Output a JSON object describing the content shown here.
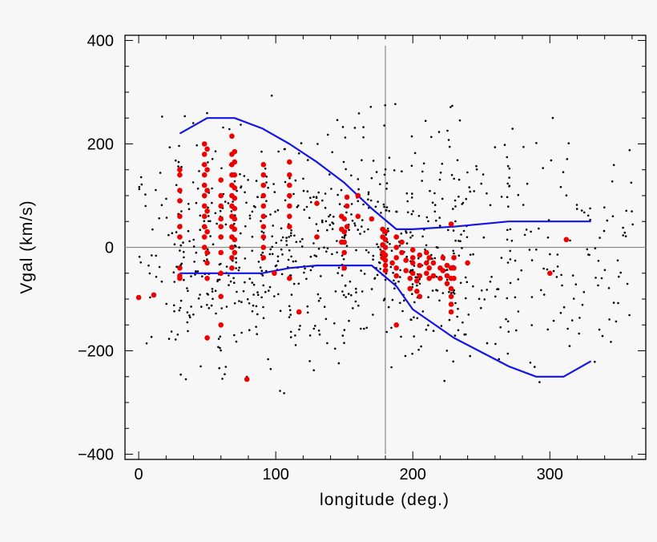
{
  "chart_data": {
    "type": "scatter",
    "title": "",
    "xlabel": "longitude (deg.)",
    "ylabel": "Vgal (km/s)",
    "xlim": [
      -10,
      370
    ],
    "ylim": [
      -410,
      410
    ],
    "xticks": [
      0,
      100,
      200,
      300
    ],
    "yticks": [
      -400,
      -200,
      0,
      200,
      400
    ],
    "ytick_labels": [
      "−400",
      "−200",
      "0",
      "200",
      "400"
    ],
    "grid": false,
    "reference_lines": {
      "x": 180,
      "y": 0
    },
    "colors": {
      "field_points": "#000000",
      "highlight_points": "#ee0000",
      "envelope": "#1414e6",
      "reference": "#8c8c8c"
    },
    "upper_envelope": {
      "x": [
        30,
        50,
        70,
        90,
        110,
        130,
        150,
        170,
        188,
        200,
        230,
        270,
        310,
        330
      ],
      "y": [
        220,
        250,
        250,
        230,
        200,
        165,
        125,
        75,
        35,
        35,
        40,
        50,
        50,
        50
      ]
    },
    "lower_envelope": {
      "x": [
        30,
        50,
        70,
        90,
        110,
        130,
        150,
        170,
        188,
        200,
        230,
        270,
        290,
        310,
        330
      ],
      "y": [
        -50,
        -50,
        -50,
        -50,
        -40,
        -35,
        -35,
        -35,
        -75,
        -120,
        -175,
        -230,
        -250,
        -250,
        -220
      ]
    },
    "highlight_points": {
      "x": [
        0,
        11,
        30,
        30,
        30,
        30,
        30,
        30,
        30,
        30,
        30,
        30,
        48,
        48,
        48,
        48,
        48,
        48,
        48,
        48,
        48,
        48,
        48,
        50,
        50,
        50,
        50,
        50,
        50,
        50,
        50,
        50,
        60,
        60,
        60,
        60,
        60,
        60,
        60,
        60,
        60,
        60,
        68,
        68,
        68,
        68,
        68,
        68,
        68,
        68,
        68,
        68,
        68,
        68,
        68,
        70,
        70,
        70,
        70,
        70,
        70,
        70,
        70,
        70,
        70,
        79,
        91,
        91,
        91,
        91,
        91,
        91,
        91,
        91,
        91,
        91,
        99,
        110,
        110,
        110,
        110,
        110,
        110,
        110,
        110,
        117,
        130,
        130,
        148,
        148,
        148,
        150,
        150,
        150,
        150,
        150,
        152,
        152,
        152,
        160,
        160,
        170,
        178,
        178,
        178,
        178,
        178,
        180,
        180,
        180,
        180,
        180,
        180,
        180,
        185,
        188,
        188,
        188,
        188,
        188,
        188,
        192,
        192,
        195,
        195,
        198,
        198,
        200,
        200,
        200,
        200,
        203,
        203,
        205,
        205,
        205,
        205,
        210,
        210,
        210,
        212,
        212,
        212,
        215,
        215,
        220,
        220,
        222,
        222,
        225,
        225,
        225,
        228,
        228,
        228,
        228,
        228,
        228,
        228,
        230,
        230,
        230,
        240,
        300,
        312
      ],
      "y": [
        -97,
        -92,
        150,
        140,
        110,
        90,
        60,
        40,
        20,
        -40,
        -55,
        -60,
        200,
        180,
        160,
        140,
        120,
        100,
        80,
        60,
        40,
        20,
        0,
        190,
        150,
        110,
        70,
        30,
        -10,
        -30,
        -60,
        -175,
        130,
        100,
        80,
        55,
        40,
        20,
        -10,
        -50,
        -95,
        -150,
        215,
        180,
        160,
        140,
        120,
        100,
        80,
        60,
        40,
        20,
        0,
        -20,
        -40,
        185,
        165,
        140,
        115,
        95,
        75,
        55,
        35,
        15,
        -10,
        -255,
        160,
        140,
        120,
        100,
        80,
        60,
        40,
        20,
        0,
        -20,
        -50,
        165,
        140,
        120,
        100,
        80,
        60,
        40,
        -60,
        -125,
        85,
        20,
        60,
        35,
        10,
        55,
        30,
        10,
        -10,
        -40,
        97,
        80,
        40,
        100,
        60,
        55,
        35,
        20,
        5,
        -10,
        -20,
        30,
        15,
        0,
        -15,
        -25,
        -35,
        -45,
        -30,
        20,
        0,
        -20,
        -40,
        -55,
        -150,
        10,
        -10,
        -25,
        -45,
        -60,
        -80,
        -5,
        -20,
        -30,
        -50,
        -65,
        -85,
        -15,
        -35,
        -55,
        -95,
        -10,
        -30,
        -50,
        -20,
        -40,
        -60,
        -30,
        -55,
        -40,
        -60,
        -20,
        -45,
        -35,
        -55,
        -70,
        45,
        -40,
        -60,
        -80,
        -95,
        -110,
        -125,
        -20,
        -40,
        -60,
        -30,
        -50,
        15
      ]
    }
  }
}
